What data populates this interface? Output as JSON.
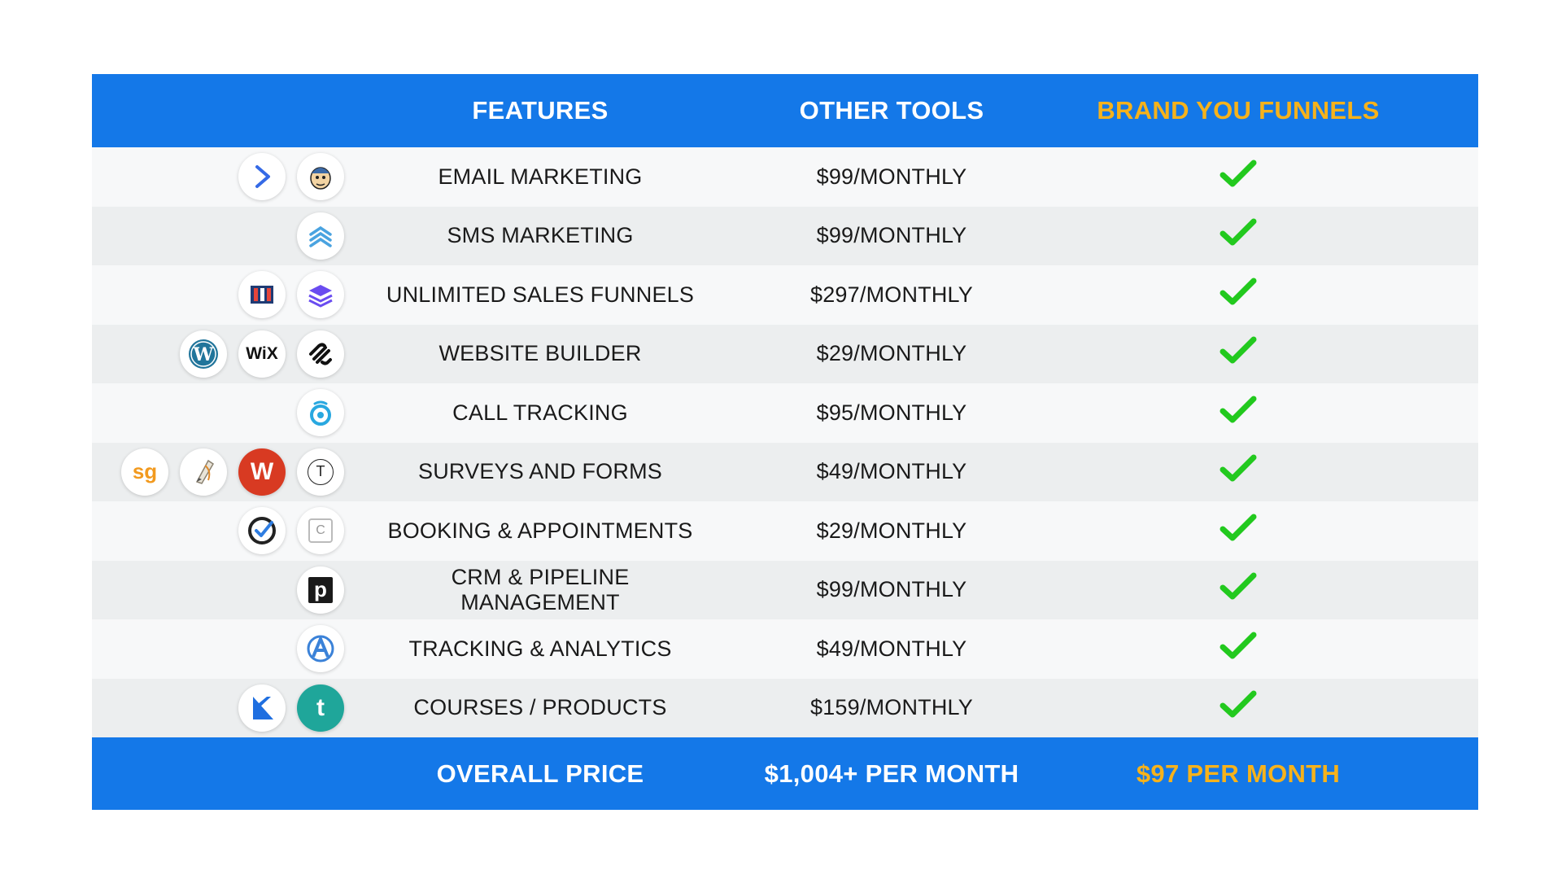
{
  "header": {
    "features": "FEATURES",
    "other_tools": "OTHER TOOLS",
    "brand": "BRAND YOU FUNNELS"
  },
  "rows": [
    {
      "feature": "EMAIL MARKETING",
      "price": "$99/MONTHLY",
      "logos": [
        "activecampaign-icon",
        "mailchimp-icon"
      ]
    },
    {
      "feature": "SMS MARKETING",
      "price": "$99/MONTHLY",
      "logos": [
        "sms-chevrons-icon"
      ]
    },
    {
      "feature": "UNLIMITED SALES FUNNELS",
      "price": "$297/MONTHLY",
      "logos": [
        "clickfunnels-icon",
        "layers-icon"
      ]
    },
    {
      "feature": "WEBSITE BUILDER",
      "price": "$29/MONTHLY",
      "logos": [
        "wordpress-icon",
        "wix-icon",
        "squarespace-icon"
      ]
    },
    {
      "feature": "CALL TRACKING",
      "price": "$95/MONTHLY",
      "logos": [
        "call-tracking-icon"
      ]
    },
    {
      "feature": "SURVEYS AND FORMS",
      "price": "$49/MONTHLY",
      "logos": [
        "surveygizmo-icon",
        "pen-icon",
        "wufoo-icon",
        "typeform-icon"
      ]
    },
    {
      "feature": "BOOKING & APPOINTMENTS",
      "price": "$29/MONTHLY",
      "logos": [
        "check-circle-icon",
        "calendly-icon"
      ]
    },
    {
      "feature": "CRM & PIPELINE MANAGEMENT",
      "price": "$99/MONTHLY",
      "logos": [
        "pipedrive-icon"
      ]
    },
    {
      "feature": "TRACKING & ANALYTICS",
      "price": "$49/MONTHLY",
      "logos": [
        "analytics-icon"
      ]
    },
    {
      "feature": "COURSES / PRODUCTS",
      "price": "$159/MONTHLY",
      "logos": [
        "kajabi-icon",
        "teachable-icon"
      ]
    }
  ],
  "logo_text": {
    "wix": "WiX",
    "surveygizmo": "sg",
    "wufoo": "W",
    "typeform": "T",
    "pipedrive": "p",
    "teachable": "t",
    "calendly": "C"
  },
  "footer": {
    "label": "OVERALL PRICE",
    "other_total": "$1,004+ PER MONTH",
    "brand_total": "$97 PER MONTH"
  },
  "colors": {
    "header_blue": "#1478e8",
    "accent_gold": "#f6b21b",
    "check_green": "#22c91e"
  }
}
